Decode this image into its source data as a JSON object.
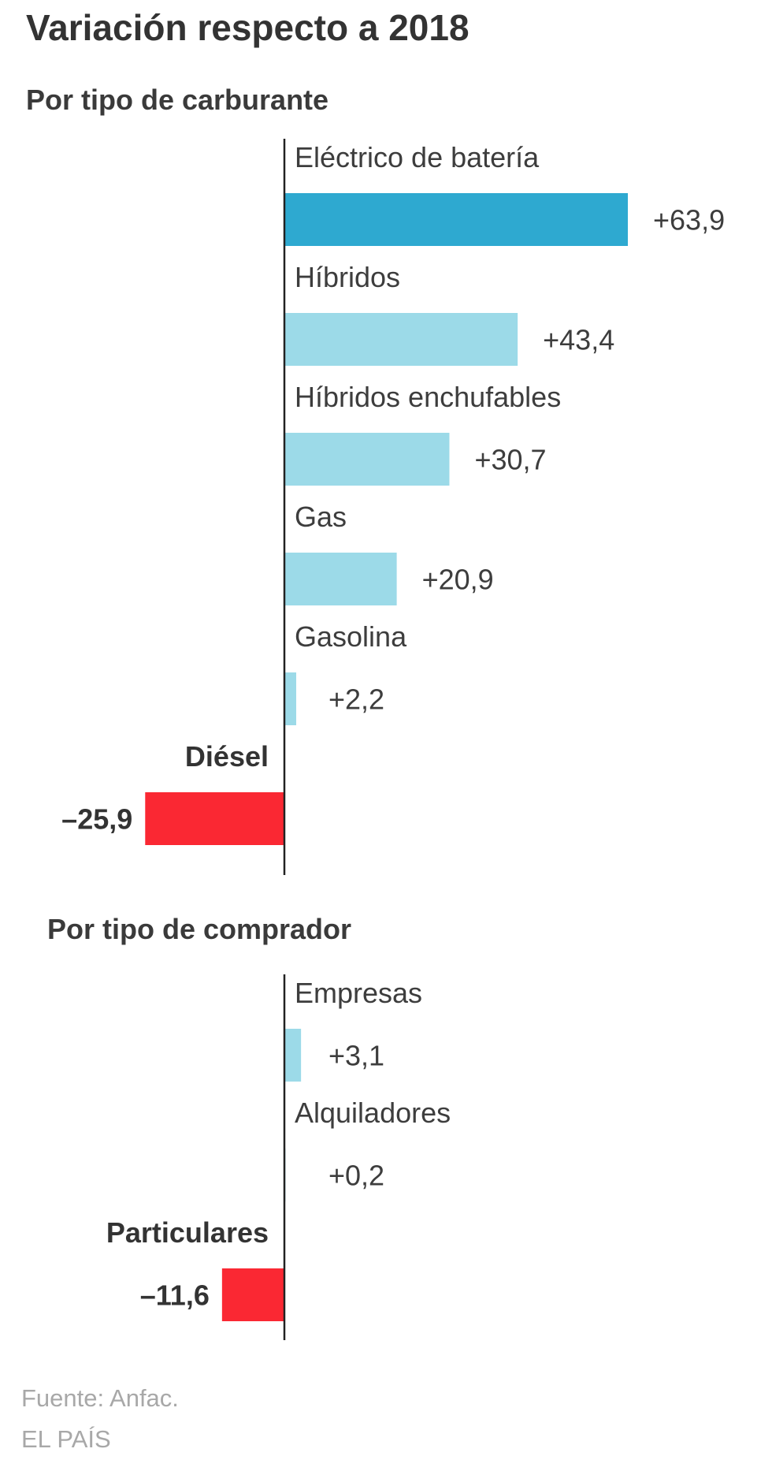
{
  "title": "Variación respecto a 2018",
  "source": "Fuente: Anfac.",
  "brand": "EL PAÍS",
  "colors": {
    "highlight": "#2ea9d0",
    "positive": "#9cdae8",
    "negative": "#fa2833",
    "axis": "#222222"
  },
  "chart_data": [
    {
      "type": "bar",
      "orientation": "horizontal",
      "title": "Por tipo de carburante",
      "xlim": [
        -40,
        70
      ],
      "categories": [
        "Eléctrico de batería",
        "Híbridos",
        "Híbridos enchufables",
        "Gas",
        "Gasolina",
        "Diésel"
      ],
      "values": [
        63.9,
        43.4,
        30.7,
        20.9,
        2.2,
        -25.9
      ],
      "labels": [
        "+63,9",
        "+43,4",
        "+30,7",
        "+20,9",
        "+2,2",
        "–25,9"
      ],
      "highlight": "Eléctrico de batería"
    },
    {
      "type": "bar",
      "orientation": "horizontal",
      "title": "Por tipo de comprador",
      "xlim": [
        -40,
        70
      ],
      "categories": [
        "Empresas",
        "Alquiladores",
        "Particulares"
      ],
      "values": [
        3.1,
        0.2,
        -11.6
      ],
      "labels": [
        "+3,1",
        "+0,2",
        "–11,6"
      ]
    }
  ]
}
